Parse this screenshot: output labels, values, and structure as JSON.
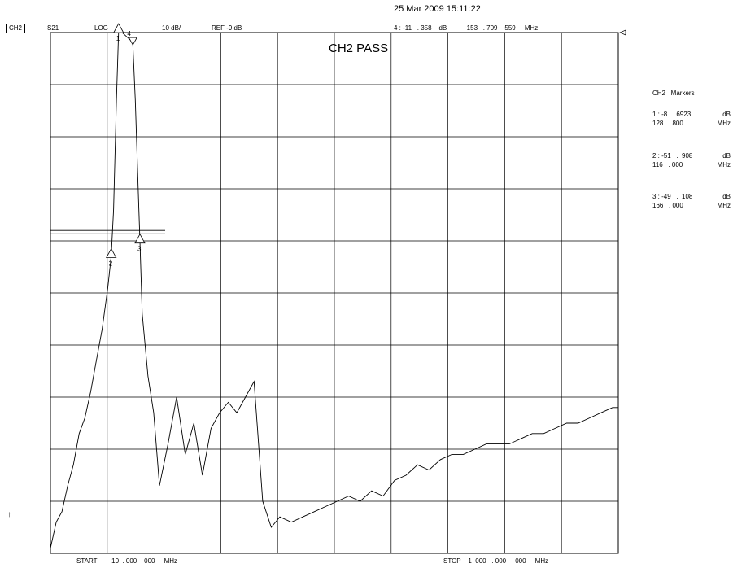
{
  "header": {
    "timestamp": "25 Mar 2009 15:11:22",
    "channel": "CH2",
    "parameter": "S21",
    "format": "LOG",
    "scale": "10 dB/",
    "reference": "REF -9 dB",
    "active_marker": "4 : -11   . 358    dB           153   . 709    559     MHz"
  },
  "status": "CH2 PASS",
  "markers_panel": {
    "title": "CH2   Markers",
    "items": [
      {
        "id": "1",
        "value": "1 : -8   . 6923",
        "unit_db": "dB",
        "freq": "128   . 800",
        "unit_f": "MHz"
      },
      {
        "id": "2",
        "value": "2 : -51   .  908",
        "unit_db": "dB",
        "freq": "116   . 000",
        "unit_f": "MHz"
      },
      {
        "id": "3",
        "value": "3 : -49   .  108",
        "unit_db": "dB",
        "freq": "166   . 000",
        "unit_f": "MHz"
      }
    ]
  },
  "footer": {
    "start": "START        10  . 000    000     MHz",
    "stop": "STOP    1  000   . 000     000     MHz"
  },
  "chart_data": {
    "type": "line",
    "title": "CH2 PASS",
    "xlabel": "",
    "ylabel": "",
    "xunit": "MHz",
    "xlim": [
      10,
      1000
    ],
    "ylim": [
      -109,
      -9
    ],
    "y_per_div": 10,
    "grid": true,
    "reference_level_db": -9,
    "limit_line_db": -47,
    "limit_line_x": [
      10,
      210
    ],
    "markers": [
      {
        "id": "1",
        "x": 128.8,
        "y": -8.6923
      },
      {
        "id": "2",
        "x": 116.0,
        "y": -51.908
      },
      {
        "id": "3",
        "x": 166.0,
        "y": -49.108
      },
      {
        "id": "4",
        "x": 153.709559,
        "y": -11.358
      }
    ],
    "series": [
      {
        "x": [
          10,
          20,
          30,
          40,
          50,
          60,
          70,
          80,
          90,
          100,
          110,
          116,
          120,
          125,
          128.8,
          135,
          140,
          145,
          150,
          153.7,
          158,
          162,
          166,
          170,
          180,
          190,
          200,
          215,
          230,
          245,
          260,
          275,
          290,
          305,
          320,
          335,
          350,
          365,
          380,
          395,
          410,
          430,
          450,
          470,
          490,
          510,
          530,
          550,
          570,
          590,
          610,
          630,
          650,
          670,
          690,
          710,
          730,
          750,
          770,
          790,
          810,
          830,
          850,
          870,
          890,
          910,
          930,
          950,
          970,
          990,
          1000
        ],
        "y": [
          -108,
          -103,
          -101,
          -96,
          -92,
          -86,
          -83,
          -78,
          -72,
          -66,
          -58,
          -51.908,
          -43,
          -22,
          -8.6923,
          -9,
          -9.5,
          -10,
          -10.5,
          -11.358,
          -22,
          -36,
          -49.108,
          -63,
          -75,
          -82,
          -96,
          -88,
          -79,
          -90,
          -84,
          -94,
          -85,
          -82,
          -80,
          -82,
          -79,
          -76,
          -99,
          -104,
          -102,
          -103,
          -102,
          -101,
          -100,
          -99,
          -98,
          -99,
          -97,
          -98,
          -95,
          -94,
          -92,
          -93,
          -91,
          -90,
          -90,
          -89,
          -88,
          -88,
          -88,
          -87,
          -86,
          -86,
          -85,
          -84,
          -84,
          -83,
          -82,
          -81,
          -81
        ]
      }
    ]
  }
}
